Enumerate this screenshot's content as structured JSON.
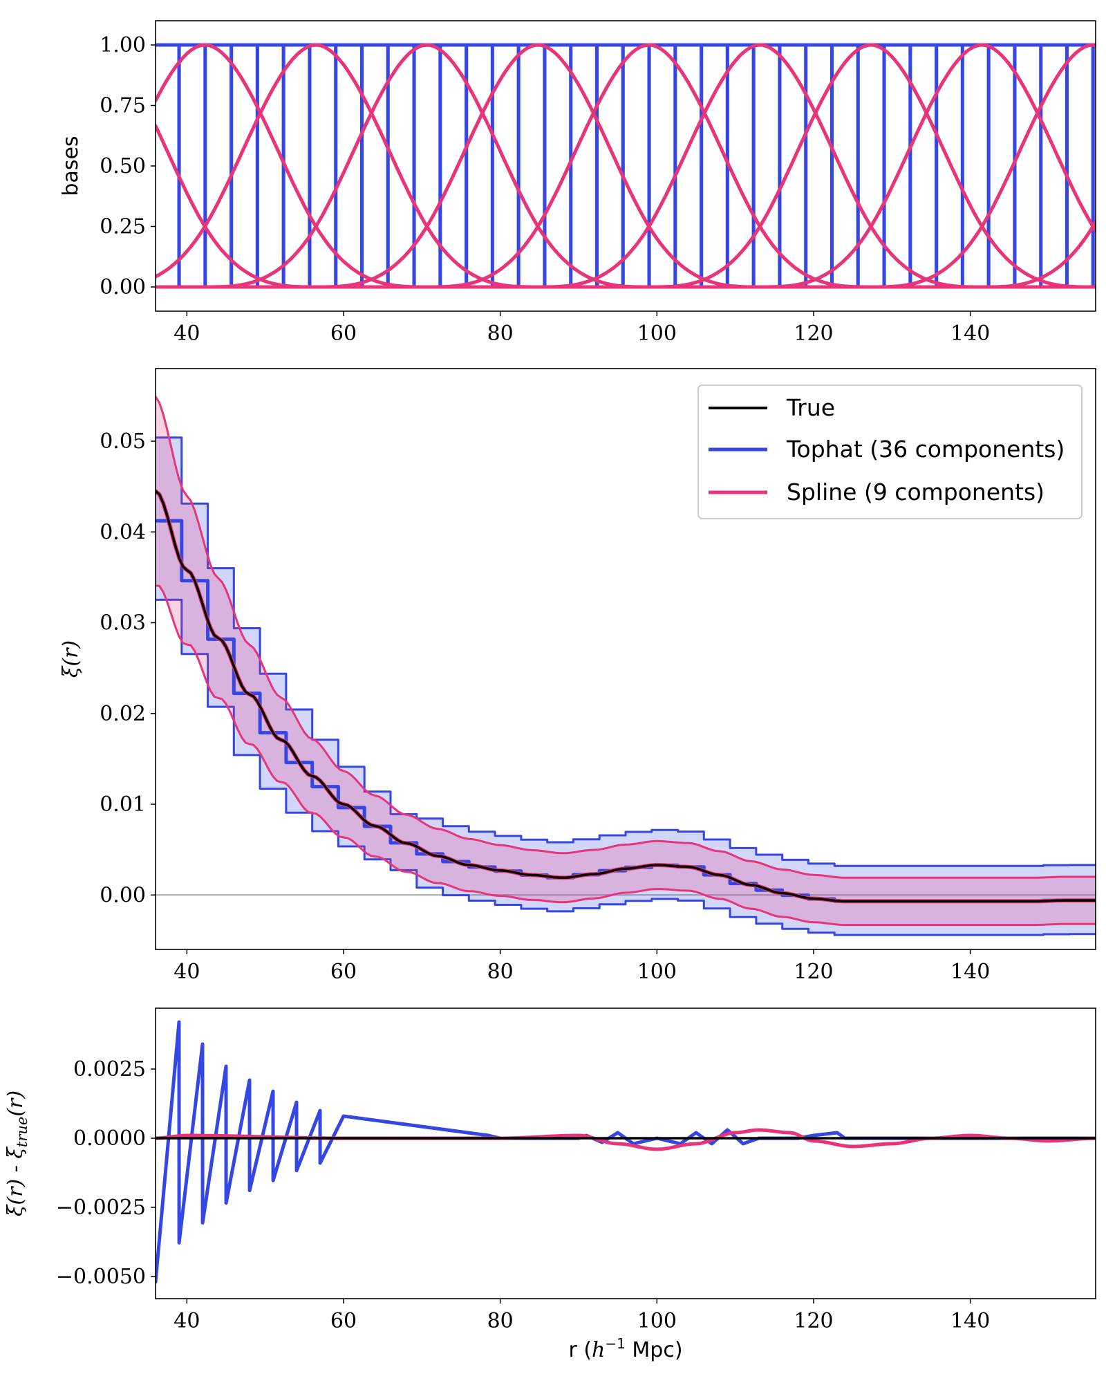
{
  "chart_data": [
    {
      "type": "line",
      "panel": "top",
      "ylabel": "bases",
      "xlim": [
        36,
        156
      ],
      "ylim": [
        -0.1,
        1.1
      ],
      "x_ticks": [
        40,
        60,
        80,
        100,
        120,
        140
      ],
      "y_ticks": [
        0.0,
        0.25,
        0.5,
        0.75,
        1.0
      ],
      "y_tick_labels": [
        "0.00",
        "0.25",
        "0.50",
        "0.75",
        "1.00"
      ],
      "series": [
        {
          "color": "#3446e3",
          "kind": "tophat",
          "values": "36 tophat bins of width 3.33 between r=36 and r=156, each equal to 1 inside its bin and 0 outside"
        },
        {
          "color": "#e8357a",
          "kind": "spline",
          "values": "9 cubic B-spline bases centred every 14.17 from r=42.3 to r=155.6, peak value 1.00"
        }
      ]
    },
    {
      "type": "line",
      "panel": "middle",
      "ylabel": "ξ(r)",
      "xlim": [
        36,
        156
      ],
      "ylim": [
        -0.006,
        0.058
      ],
      "x_ticks": [
        40,
        60,
        80,
        100,
        120,
        140
      ],
      "y_ticks": [
        0.0,
        0.01,
        0.02,
        0.03,
        0.04,
        0.05
      ],
      "y_tick_labels": [
        "0.00",
        "0.01",
        "0.02",
        "0.03",
        "0.04",
        "0.05"
      ],
      "zero_line": true,
      "legend_position": "top-right",
      "series": [
        {
          "name": "True",
          "color": "#000000"
        },
        {
          "name": "Tophat (36 components)",
          "color": "#3446e3"
        },
        {
          "name": "Spline (9 components)",
          "color": "#e8357a"
        }
      ],
      "true_curve": {
        "x": [
          36,
          40,
          44,
          48,
          52,
          56,
          60,
          64,
          68,
          72,
          76,
          80,
          84,
          88,
          92,
          96,
          100,
          104,
          108,
          112,
          116,
          120,
          124,
          128,
          132,
          136,
          140,
          144,
          148,
          152,
          156
        ],
        "y": [
          0.0445,
          0.0358,
          0.0283,
          0.0221,
          0.0171,
          0.0131,
          0.01,
          0.0076,
          0.0057,
          0.0043,
          0.0033,
          0.0027,
          0.0022,
          0.0019,
          0.0023,
          0.0029,
          0.0033,
          0.0031,
          0.0022,
          0.0011,
          0.0002,
          -0.0004,
          -0.0007,
          -0.0007,
          -0.0007,
          -0.0007,
          -0.0007,
          -0.0007,
          -0.0007,
          -0.0006,
          -0.0006
        ]
      },
      "tophat_band_halfwidth": 0.008,
      "spline_band_halfwidth": 0.0026
    },
    {
      "type": "line",
      "panel": "bottom",
      "xlabel": "r (h⁻¹ Mpc)",
      "ylabel": "ξ(r) - ξ_true(r)",
      "xlim": [
        36,
        156
      ],
      "ylim": [
        -0.0058,
        0.0047
      ],
      "x_ticks": [
        40,
        60,
        80,
        100,
        120,
        140
      ],
      "y_ticks": [
        -0.005,
        -0.0025,
        0.0,
        0.0025
      ],
      "y_tick_labels": [
        "−0.0050",
        "−0.0025",
        "0.0000",
        "0.0025"
      ],
      "series": [
        {
          "color": "#000000",
          "values": "identically 0"
        },
        {
          "color": "#3446e3",
          "kind": "tophat residual sawtooth",
          "peak_amplitudes": [
            0.0042,
            0.0034,
            0.0026,
            0.0021,
            0.0017,
            0.0013,
            0.001,
            0.0008
          ]
        },
        {
          "color": "#e8357a",
          "kind": "spline residual",
          "x": [
            36,
            40,
            60,
            80,
            90,
            95,
            100,
            105,
            110,
            113,
            117,
            120,
            125,
            130,
            135,
            140,
            145,
            150,
            156
          ],
          "y": [
            0.0,
            0.0001,
            0.0,
            0.0,
            0.0001,
            -0.0002,
            -0.0004,
            -0.0002,
            0.0002,
            0.0003,
            0.0002,
            -0.0001,
            -0.0003,
            -0.0002,
            0.0,
            0.0001,
            0.0,
            -0.0001,
            0.0
          ]
        }
      ]
    }
  ],
  "text": {
    "panel1_ylabel": "bases",
    "panel2_ylabel": "ξ(r)",
    "panel3_ylabel_a": "ξ(r) - ξ",
    "panel3_ylabel_sub": "true",
    "panel3_ylabel_b": "(r)",
    "xlabel_a": "r (",
    "xlabel_h": "h",
    "xlabel_sup": "−1",
    "xlabel_b": " Mpc)",
    "legend_true": "True",
    "legend_tophat": "Tophat (36 components)",
    "legend_spline": "Spline (9 components)"
  }
}
